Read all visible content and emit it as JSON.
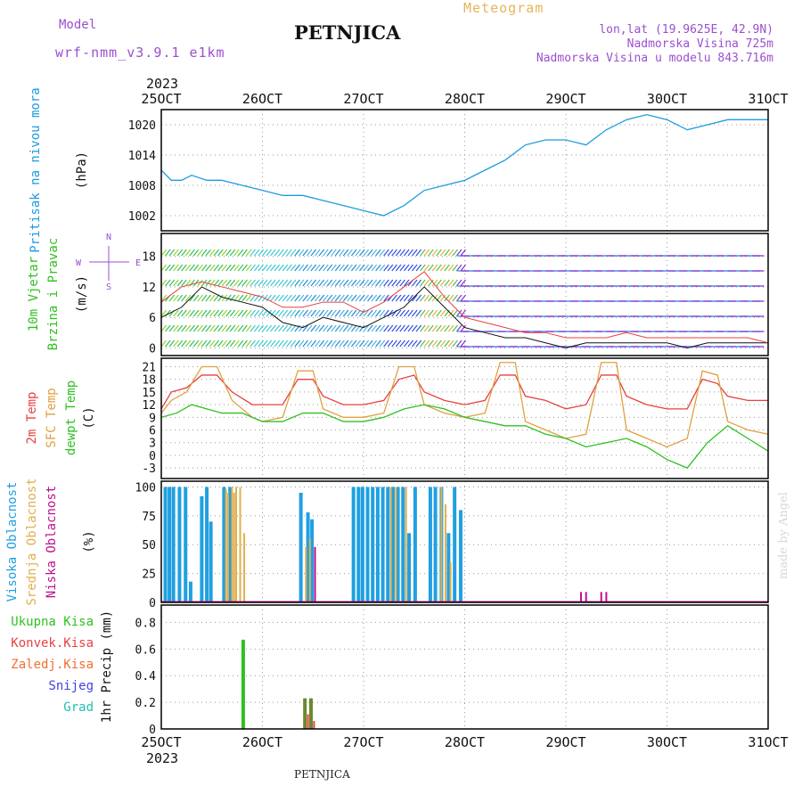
{
  "header": {
    "model_label": "Model",
    "model_name": "wrf-nmm_v3.9.1 e1km",
    "title": "PETNJICA",
    "product": "Meteogram",
    "coords": "lon,lat (19.9625E, 42.9N)",
    "elevation": "Nadmorska Visina 725m",
    "model_elevation": "Nadmorska Visina u modelu 843.716m",
    "footer_title": "PETNJICA",
    "credit": "made by Angel",
    "year": "2023"
  },
  "colors": {
    "pressure": "#1e9be0",
    "temp2m": "#e84040",
    "sfc": "#e0a040",
    "dew": "#30c020",
    "cloud_high": "#20a0e0",
    "cloud_mid": "#e0b050",
    "cloud_low": "#c01090",
    "precip_total": "#30c020",
    "precip_conv": "#e84040",
    "precip_frozen": "#f07030",
    "snow": "#4040e0",
    "hail": "#20c0b0",
    "violet": "#9b4fd0"
  },
  "chart_data": [
    {
      "type": "line",
      "panel": "pressure",
      "ylabel_lines": [
        "Pritisak na nivou mora",
        "(hPa)"
      ],
      "ylim": [
        999,
        1023
      ],
      "yticks": [
        1002,
        1008,
        1014,
        1020
      ],
      "x_categories": [
        "25OCT",
        "26OCT",
        "27OCT",
        "28OCT",
        "29OCT",
        "30OCT",
        "31OCT"
      ],
      "series": [
        {
          "x": [
            0,
            0.1,
            0.2,
            0.3,
            0.45,
            0.6,
            0.8,
            1.0,
            1.2,
            1.4,
            1.6,
            1.8,
            2.0,
            2.2,
            2.4,
            2.6,
            2.8,
            3.0,
            3.2,
            3.4,
            3.6,
            3.8,
            4.0,
            4.2,
            4.4,
            4.6,
            4.8,
            5.0,
            5.2,
            5.4,
            5.6,
            5.8,
            6.0
          ],
          "y": [
            1011,
            1009,
            1009,
            1010,
            1009,
            1009,
            1008,
            1007,
            1006,
            1006,
            1005,
            1004,
            1003,
            1002,
            1004,
            1007,
            1008,
            1009,
            1011,
            1013,
            1016,
            1017,
            1017,
            1016,
            1019,
            1021,
            1022,
            1021,
            1019,
            1020,
            1021,
            1021,
            1021
          ]
        }
      ]
    },
    {
      "type": "line",
      "panel": "wind",
      "ylabel_lines": [
        "10m Vjetar",
        "Brzina i Pravac",
        "(m/s)"
      ],
      "compass": [
        "N",
        "W",
        "E",
        "S"
      ],
      "ylim": [
        -1.5,
        22.5
      ],
      "yticks": [
        0,
        6,
        12,
        18
      ],
      "series": [
        {
          "name": "wind-speed",
          "x": [
            0,
            0.2,
            0.4,
            0.6,
            0.8,
            1.0,
            1.2,
            1.4,
            1.6,
            1.8,
            2.0,
            2.2,
            2.4,
            2.6,
            2.8,
            3.0,
            3.2,
            3.4,
            3.6,
            3.8,
            4.0,
            4.2,
            4.4,
            4.6,
            4.8,
            5.0,
            5.2,
            5.4,
            5.6,
            5.8,
            6.0
          ],
          "y": [
            6,
            8,
            12,
            10,
            9,
            8,
            5,
            4,
            6,
            5,
            4,
            6,
            8,
            12,
            8,
            4,
            3,
            2,
            2,
            1,
            0,
            1,
            1,
            1,
            1,
            1,
            0,
            1,
            1,
            1,
            1
          ]
        },
        {
          "name": "wind-gust",
          "x": [
            0,
            0.2,
            0.4,
            0.6,
            0.8,
            1.0,
            1.2,
            1.4,
            1.6,
            1.8,
            2.0,
            2.2,
            2.4,
            2.6,
            2.8,
            3.0,
            3.2,
            3.4,
            3.6,
            3.8,
            4.0,
            4.2,
            4.4,
            4.6,
            4.8,
            5.0,
            5.2,
            5.4,
            5.6,
            5.8,
            6.0
          ],
          "y": [
            9,
            12,
            13,
            12,
            11,
            10,
            8,
            8,
            9,
            9,
            7,
            9,
            12,
            15,
            10,
            6,
            5,
            4,
            3,
            3,
            2,
            2,
            2,
            3,
            2,
            2,
            2,
            2,
            2,
            2,
            1
          ]
        }
      ]
    },
    {
      "type": "line",
      "panel": "temperature",
      "ylabel_lines": [
        "2m Temp",
        "SFC Temp",
        "dewpt Temp",
        "(C)"
      ],
      "ylim": [
        -5.5,
        23
      ],
      "yticks": [
        -3,
        0,
        3,
        6,
        9,
        12,
        15,
        18,
        21
      ],
      "series": [
        {
          "name": "2m Temp",
          "x": [
            0,
            0.1,
            0.25,
            0.4,
            0.55,
            0.7,
            0.9,
            1.0,
            1.2,
            1.35,
            1.5,
            1.6,
            1.8,
            2.0,
            2.2,
            2.35,
            2.5,
            2.6,
            2.8,
            3.0,
            3.2,
            3.35,
            3.5,
            3.6,
            3.8,
            4.0,
            4.2,
            4.35,
            4.5,
            4.6,
            4.8,
            5.0,
            5.2,
            5.35,
            5.5,
            5.6,
            5.8,
            6.0
          ],
          "y": [
            11,
            15,
            16,
            19,
            19,
            15,
            12,
            12,
            12,
            18,
            18,
            14,
            12,
            12,
            13,
            18,
            19,
            15,
            13,
            12,
            13,
            19,
            19,
            14,
            13,
            11,
            12,
            19,
            19,
            14,
            12,
            11,
            11,
            18,
            17,
            14,
            13,
            13
          ]
        },
        {
          "name": "SFC Temp",
          "x": [
            0,
            0.1,
            0.25,
            0.4,
            0.55,
            0.7,
            0.9,
            1.0,
            1.2,
            1.35,
            1.5,
            1.6,
            1.8,
            2.0,
            2.2,
            2.35,
            2.5,
            2.6,
            2.8,
            3.0,
            3.2,
            3.35,
            3.5,
            3.6,
            3.8,
            4.0,
            4.2,
            4.35,
            4.5,
            4.6,
            4.8,
            5.0,
            5.2,
            5.35,
            5.5,
            5.6,
            5.8,
            6.0
          ],
          "y": [
            10,
            13,
            15,
            21,
            21,
            13,
            9,
            8,
            9,
            20,
            20,
            11,
            9,
            9,
            10,
            21,
            21,
            12,
            10,
            9,
            10,
            22,
            22,
            8,
            6,
            4,
            5,
            22,
            22,
            6,
            4,
            2,
            4,
            20,
            19,
            8,
            6,
            5
          ]
        },
        {
          "name": "dewpt Temp",
          "x": [
            0,
            0.15,
            0.3,
            0.45,
            0.6,
            0.8,
            1.0,
            1.2,
            1.4,
            1.6,
            1.8,
            2.0,
            2.2,
            2.4,
            2.6,
            2.8,
            3.0,
            3.2,
            3.4,
            3.6,
            3.8,
            4.0,
            4.2,
            4.4,
            4.6,
            4.8,
            5.0,
            5.2,
            5.4,
            5.6,
            5.8,
            6.0
          ],
          "y": [
            9,
            10,
            12,
            11,
            10,
            10,
            8,
            8,
            10,
            10,
            8,
            8,
            9,
            11,
            12,
            11,
            9,
            8,
            7,
            7,
            5,
            4,
            2,
            3,
            4,
            2,
            -1,
            -3,
            3,
            7,
            4,
            1
          ]
        }
      ]
    },
    {
      "type": "bar",
      "panel": "clouds",
      "ylabel_lines": [
        "Visoka Oblacnost",
        "Srednja Oblacnost",
        "Niska Oblacnost",
        "(%)"
      ],
      "ylim": [
        0,
        105
      ],
      "yticks": [
        0,
        25,
        50,
        75,
        100
      ],
      "series": [
        {
          "name": "Visoka Oblacnost",
          "x": [
            0.04,
            0.08,
            0.12,
            0.18,
            0.24,
            0.29,
            0.4,
            0.45,
            0.49,
            0.62,
            0.68,
            1.38,
            1.45,
            1.49,
            1.9,
            1.95,
            1.99,
            2.04,
            2.09,
            2.14,
            2.19,
            2.24,
            2.29,
            2.34,
            2.39,
            2.45,
            2.51,
            2.66,
            2.71,
            2.77,
            2.84,
            2.9,
            2.96
          ],
          "values": [
            100,
            100,
            100,
            100,
            100,
            18,
            92,
            100,
            70,
            100,
            100,
            95,
            78,
            72,
            100,
            100,
            100,
            100,
            100,
            100,
            100,
            100,
            100,
            100,
            100,
            60,
            100,
            100,
            100,
            100,
            60,
            100,
            80
          ]
        },
        {
          "name": "Srednja Oblacnost",
          "x": [
            0.64,
            0.66,
            0.7,
            0.72,
            0.74,
            0.78,
            0.82,
            1.43,
            1.47,
            2.27,
            2.32,
            2.42,
            2.77,
            2.81,
            2.86
          ],
          "values": [
            98,
            95,
            100,
            95,
            100,
            100,
            60,
            48,
            55,
            100,
            100,
            100,
            100,
            85,
            35
          ]
        },
        {
          "name": "Niska Oblacnost",
          "x": [
            1.52,
            4.15,
            4.2,
            4.35,
            4.4
          ],
          "values": [
            48,
            9,
            9,
            9,
            9
          ]
        }
      ]
    },
    {
      "type": "bar",
      "panel": "precip",
      "ylabel_lines": [
        "1hr Precip (mm)"
      ],
      "legend": [
        "Ukupna Kisa",
        "Konvek.Kisa",
        "Zaledj.Kisa",
        "Snijeg",
        "Grad"
      ],
      "ylim": [
        0,
        0.93
      ],
      "yticks": [
        0,
        0.2,
        0.4,
        0.6,
        0.8
      ],
      "series": [
        {
          "name": "Ukupna Kisa",
          "x": [
            0.81,
            1.42,
            1.48
          ],
          "values": [
            0.67,
            0.23,
            0.23
          ]
        },
        {
          "name": "Konvek.Kisa",
          "x": [
            1.45,
            1.51
          ],
          "values": [
            0.11,
            0.06
          ]
        }
      ]
    }
  ]
}
